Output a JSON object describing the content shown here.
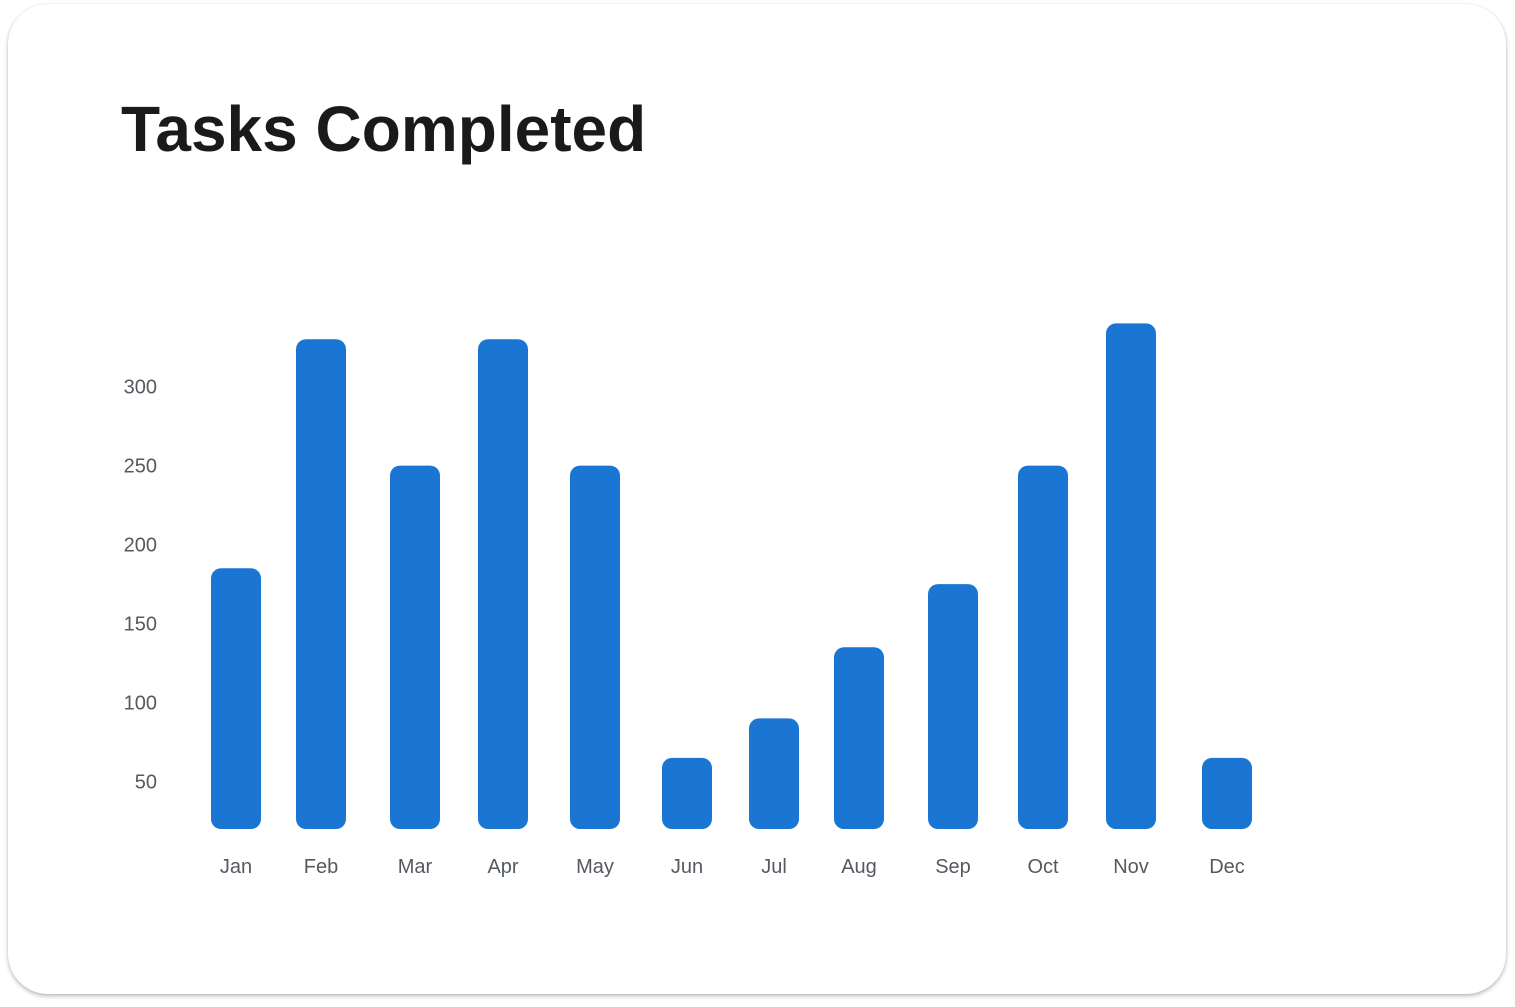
{
  "title": "Tasks Completed",
  "colors": {
    "bar": "#1a76d2",
    "axis_text": "#555a60",
    "title": "#1a1a1a",
    "card_background": "#ffffff"
  },
  "chart_data": {
    "type": "bar",
    "title": "Tasks Completed",
    "xlabel": "",
    "ylabel": "",
    "categories": [
      "Jan",
      "Feb",
      "Mar",
      "Apr",
      "May",
      "Jun",
      "Jul",
      "Aug",
      "Sep",
      "Oct",
      "Nov",
      "Dec"
    ],
    "values": [
      185,
      330,
      250,
      330,
      250,
      65,
      90,
      135,
      175,
      250,
      340,
      65
    ],
    "yticks": [
      50,
      100,
      150,
      200,
      250,
      300
    ],
    "ylim": [
      20,
      345
    ],
    "grid": false,
    "legend": "none"
  }
}
